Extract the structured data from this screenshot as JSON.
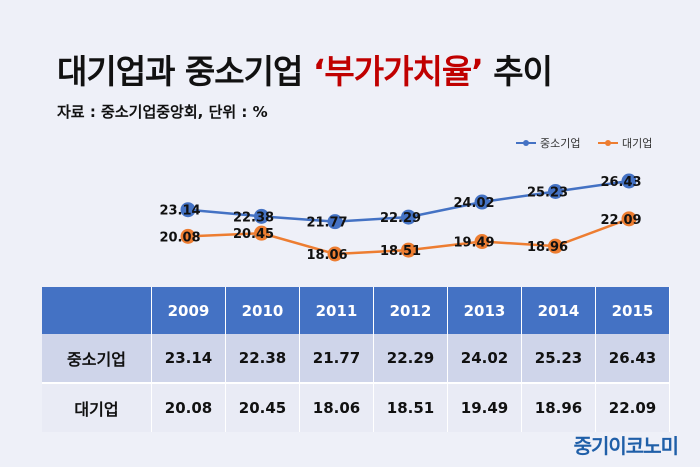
{
  "title": {
    "prefix": "대기업과 중소기업 ",
    "highlight": "‘부가가치율’",
    "suffix": " 추이"
  },
  "source": "자료 : 중소기업중앙회, 단위 : %",
  "brand": "중기이코노미",
  "chart_data": {
    "type": "line",
    "categories": [
      "2009",
      "2010",
      "2011",
      "2012",
      "2013",
      "2014",
      "2015"
    ],
    "series": [
      {
        "name": "중소기업",
        "color": "#4472c4",
        "values": [
          23.14,
          22.38,
          21.77,
          22.29,
          24.02,
          25.23,
          26.43
        ]
      },
      {
        "name": "대기업",
        "color": "#ed7d31",
        "values": [
          20.08,
          20.45,
          18.06,
          18.51,
          19.49,
          18.96,
          22.09
        ]
      }
    ],
    "legend_position": "top-right",
    "grid": false
  },
  "table": {
    "columns": [
      "",
      "2009",
      "2010",
      "2011",
      "2012",
      "2013",
      "2014",
      "2015"
    ],
    "rows": [
      {
        "label": "중소기업",
        "values": [
          "23.14",
          "22.38",
          "21.77",
          "22.29",
          "24.02",
          "25.23",
          "26.43"
        ]
      },
      {
        "label": "대기업",
        "values": [
          "20.08",
          "20.45",
          "18.06",
          "18.51",
          "19.49",
          "18.96",
          "22.09"
        ]
      }
    ]
  }
}
